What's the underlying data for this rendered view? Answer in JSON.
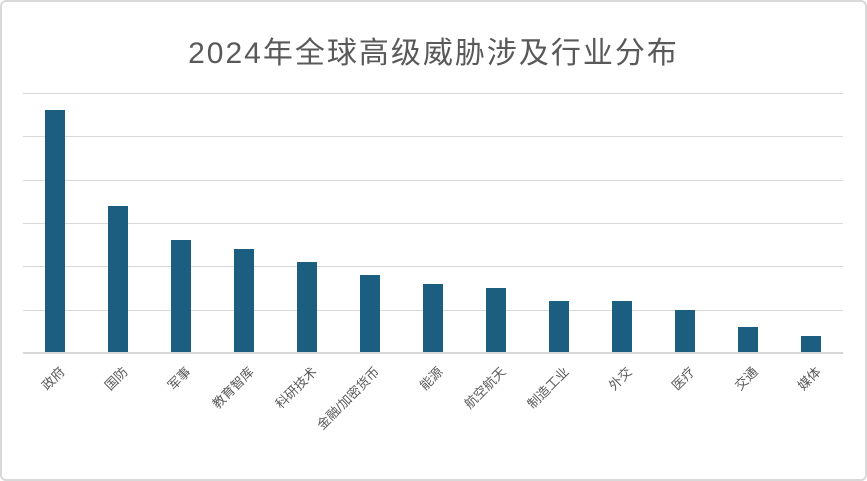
{
  "title": "2024年全球高级威胁涉及行业分布",
  "colors": {
    "bar": "#1B5E80",
    "gridline": "#D9D9D9",
    "axis_line": "#D6D6D6",
    "title_text": "#595959",
    "tick_text": "#595959",
    "border": "#D9D9D9",
    "background": "#FFFFFF"
  },
  "chart_data": {
    "type": "bar",
    "title": "2024年全球高级威胁涉及行业分布",
    "categories": [
      "政府",
      "国防",
      "军事",
      "教育智库",
      "科研技术",
      "金融/加密货币",
      "能源",
      "航空航天",
      "制造工业",
      "外交",
      "医疗",
      "交通",
      "媒体"
    ],
    "values": [
      56,
      34,
      26,
      24,
      21,
      18,
      16,
      15,
      12,
      12,
      10,
      6,
      4
    ],
    "xlabel": "",
    "ylabel": "",
    "ylim": [
      0,
      60
    ],
    "grid_step": 10,
    "grid": "on",
    "y_tick_labels_visible": false,
    "x_label_rotation_deg": -45,
    "legend": "none"
  }
}
